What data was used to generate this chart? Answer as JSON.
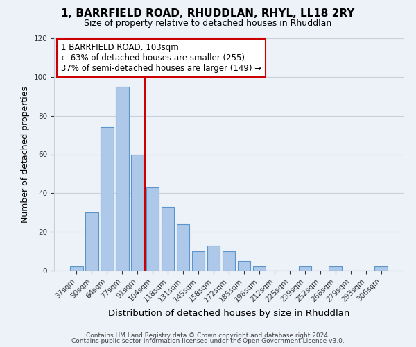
{
  "title": "1, BARRFIELD ROAD, RHUDDLAN, RHYL, LL18 2RY",
  "subtitle": "Size of property relative to detached houses in Rhuddlan",
  "xlabel": "Distribution of detached houses by size in Rhuddlan",
  "ylabel": "Number of detached properties",
  "bar_labels": [
    "37sqm",
    "50sqm",
    "64sqm",
    "77sqm",
    "91sqm",
    "104sqm",
    "118sqm",
    "131sqm",
    "145sqm",
    "158sqm",
    "172sqm",
    "185sqm",
    "198sqm",
    "212sqm",
    "225sqm",
    "239sqm",
    "252sqm",
    "266sqm",
    "279sqm",
    "293sqm",
    "306sqm"
  ],
  "bar_values": [
    2,
    30,
    74,
    95,
    60,
    43,
    33,
    24,
    10,
    13,
    10,
    5,
    2,
    0,
    0,
    2,
    0,
    2,
    0,
    0,
    2
  ],
  "bar_color": "#adc8e8",
  "bar_edge_color": "#5a96cc",
  "highlight_index": 5,
  "highlight_line_color": "#cc0000",
  "ylim": [
    0,
    120
  ],
  "yticks": [
    0,
    20,
    40,
    60,
    80,
    100,
    120
  ],
  "annotation_title": "1 BARRFIELD ROAD: 103sqm",
  "annotation_line1": "← 63% of detached houses are smaller (255)",
  "annotation_line2": "37% of semi-detached houses are larger (149) →",
  "annotation_box_edge": "#cc0000",
  "footer_line1": "Contains HM Land Registry data © Crown copyright and database right 2024.",
  "footer_line2": "Contains public sector information licensed under the Open Government Licence v3.0.",
  "background_color": "#edf1f8",
  "plot_background": "#edf1f8",
  "grid_color": "#c8d0dc"
}
